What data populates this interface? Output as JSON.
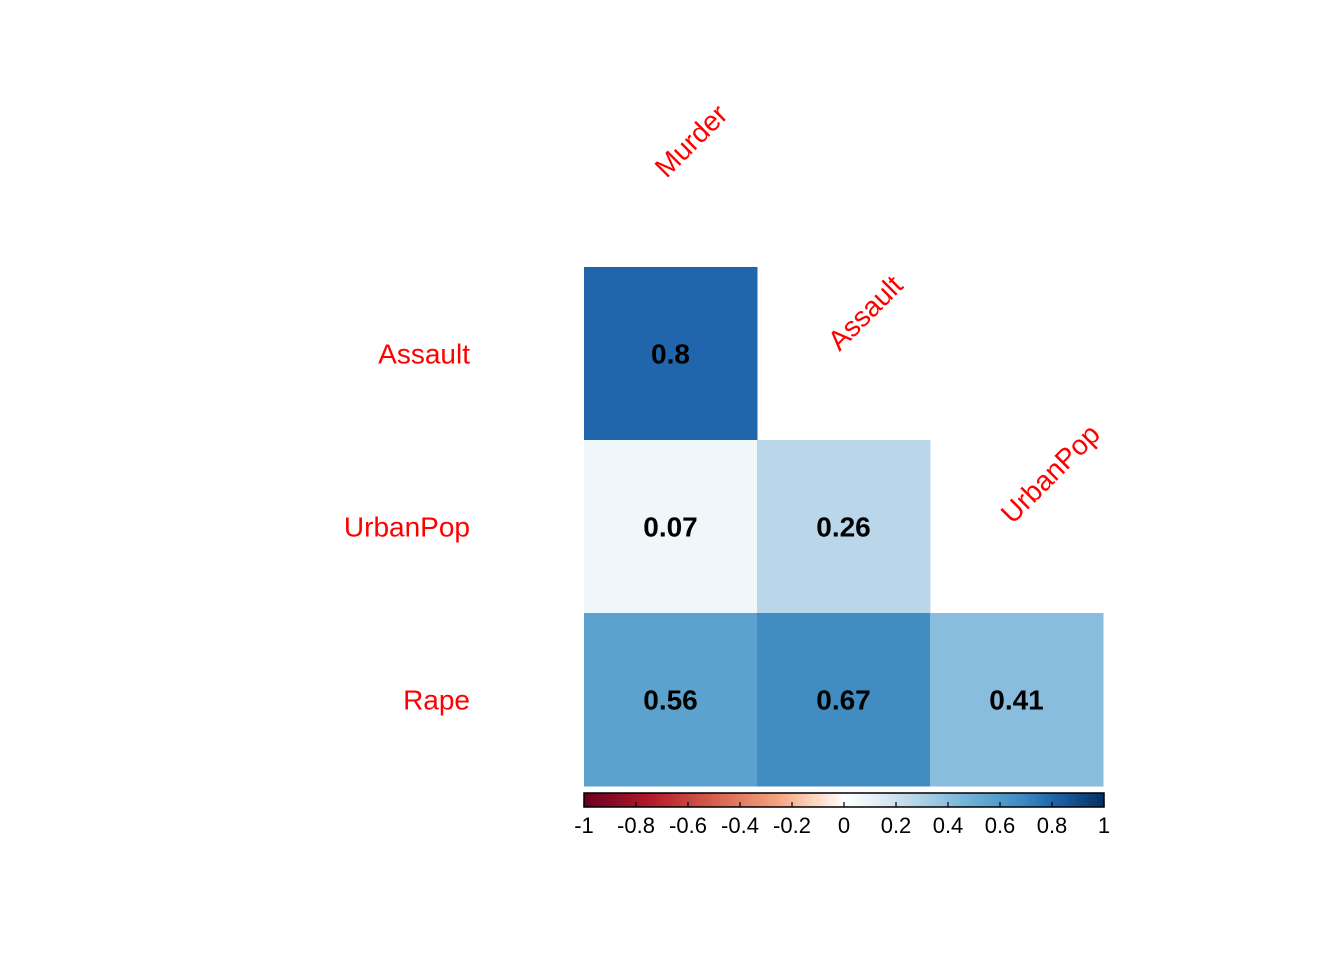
{
  "chart_data": {
    "type": "heatmap",
    "style": "lower-triangle correlation matrix",
    "variables": [
      "Murder",
      "Assault",
      "UrbanPop",
      "Rape"
    ],
    "column_labels": [
      "Murder",
      "Assault",
      "UrbanPop"
    ],
    "row_labels": [
      "Assault",
      "UrbanPop",
      "Rape"
    ],
    "cells": [
      {
        "row": "Assault",
        "col": "Murder",
        "value": 0.8,
        "label": "0.8"
      },
      {
        "row": "UrbanPop",
        "col": "Murder",
        "value": 0.07,
        "label": "0.07"
      },
      {
        "row": "UrbanPop",
        "col": "Assault",
        "value": 0.26,
        "label": "0.26"
      },
      {
        "row": "Rape",
        "col": "Murder",
        "value": 0.56,
        "label": "0.56"
      },
      {
        "row": "Rape",
        "col": "Assault",
        "value": 0.67,
        "label": "0.67"
      },
      {
        "row": "Rape",
        "col": "UrbanPop",
        "value": 0.41,
        "label": "0.41"
      }
    ],
    "colorbar": {
      "range": [
        -1,
        1
      ],
      "ticks": [
        "-1",
        "-0.8",
        "-0.6",
        "-0.4",
        "-0.2",
        "0",
        "0.2",
        "0.4",
        "0.6",
        "0.8",
        "1"
      ],
      "palette": "RdBu",
      "stops": [
        {
          "value": -1,
          "color": "#67001f"
        },
        {
          "value": -0.75,
          "color": "#b2182b"
        },
        {
          "value": -0.5,
          "color": "#d6604d"
        },
        {
          "value": -0.25,
          "color": "#f4a582"
        },
        {
          "value": -0.1,
          "color": "#fddbc7"
        },
        {
          "value": 0,
          "color": "#ffffff"
        },
        {
          "value": 0.1,
          "color": "#eaf3f8"
        },
        {
          "value": 0.25,
          "color": "#bcd9ea"
        },
        {
          "value": 0.5,
          "color": "#6aaed5"
        },
        {
          "value": 0.7,
          "color": "#3a87bf"
        },
        {
          "value": 0.8,
          "color": "#2166ac"
        },
        {
          "value": 1,
          "color": "#053061"
        }
      ],
      "placement": "bottom"
    },
    "label_color": "#ff0000",
    "value_color": "#000000"
  }
}
